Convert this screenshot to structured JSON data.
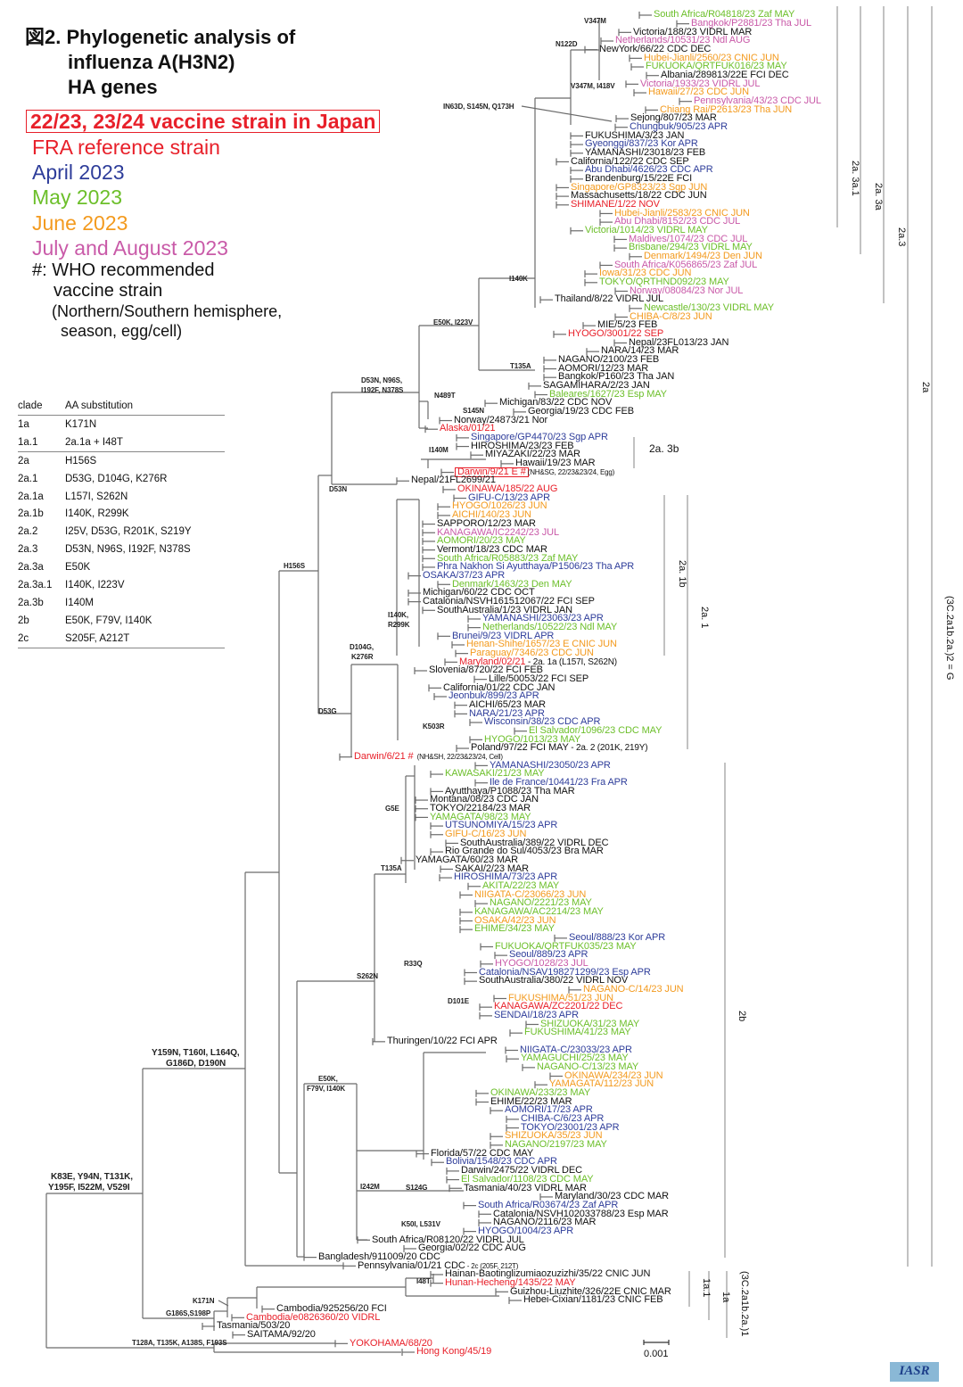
{
  "title": {
    "line1": "図2. Phylogenetic analysis of",
    "line2": "influenza A(H3N2)",
    "line3": "HA genes"
  },
  "legend": {
    "vaccine": "22/23, 23/24 vaccine strain in Japan",
    "fra": "FRA reference strain",
    "april": "April 2023",
    "may": "May 2023",
    "june": "June 2023",
    "julaug": "July and August 2023",
    "who_line1": "#: WHO recommended",
    "who_line2": "vaccine strain",
    "who_line3": "(Northern/Southern hemisphere,",
    "who_line4": "season, egg/cell)"
  },
  "colors": {
    "black": "#111111",
    "red": "#e8202a",
    "blue": "#2e3d9a",
    "green": "#6cbf2a",
    "orange": "#f39a1e",
    "pink": "#c95aa8"
  },
  "table": {
    "headers": [
      "clade",
      "AA substitution"
    ],
    "rows": [
      [
        "1a",
        "K171N"
      ],
      [
        "1a.1",
        "2a.1a + I48T"
      ],
      [
        "2a",
        "H156S"
      ],
      [
        "2a.1",
        "D53G, D104G, K276R"
      ],
      [
        "2a.1a",
        "L157I, S262N"
      ],
      [
        "2a.1b",
        "I140K, R299K"
      ],
      [
        "2a.2",
        "I25V, D53G, R201K, S219Y"
      ],
      [
        "2a.3",
        "D53N, N96S, I192F, N378S"
      ],
      [
        "2a.3a",
        "E50K"
      ],
      [
        "2a.3a.1",
        "I140K, I223V"
      ],
      [
        "2a.3b",
        "I140M"
      ],
      [
        "2b",
        "E50K, F79V, I140K"
      ],
      [
        "2c",
        "S205F, A212T"
      ]
    ]
  },
  "leaves": [
    {
      "t": "South Africa/R04818/23 Zaf MAY",
      "c": "green"
    },
    {
      "t": "Bangkok/P2881/23 Tha JUL",
      "c": "pink"
    },
    {
      "t": "Victoria/188/23 VIDRL MAR",
      "c": "black"
    },
    {
      "t": "Netherlands/10531/23 Ndl AUG",
      "c": "pink"
    },
    {
      "t": "NewYork/66/22 CDC DEC",
      "c": "black"
    },
    {
      "t": "Hubei-Jianli/2560/23 CNIC JUN",
      "c": "orange"
    },
    {
      "t": "FUKUOKA/QRTFUK016/23 MAY",
      "c": "green"
    },
    {
      "t": "Albania/289813/22E FCI DEC",
      "c": "black"
    },
    {
      "t": "Victoria/1933/23 VIDRL JUL",
      "c": "pink"
    },
    {
      "t": "Hawaii/27/23 CDC JUN",
      "c": "orange"
    },
    {
      "t": "Pennsylvania/43/23 CDC JUL",
      "c": "pink"
    },
    {
      "t": "Chiang Rai/P2613/23 Tha JUN",
      "c": "orange"
    },
    {
      "t": "Sejong/807/23 MAR",
      "c": "black"
    },
    {
      "t": "Chungbuk/905/23 APR",
      "c": "blue"
    },
    {
      "t": "FUKUSHIMA/3/23 JAN",
      "c": "black"
    },
    {
      "t": "Gyeonggi/837/23 Kor APR",
      "c": "blue"
    },
    {
      "t": "YAMANASHI/23018/23 FEB",
      "c": "black"
    },
    {
      "t": "California/122/22 CDC SEP",
      "c": "black"
    },
    {
      "t": "Abu Dhabi/4626/23 CDC APR",
      "c": "blue"
    },
    {
      "t": "Brandenburg/15/22E FCI",
      "c": "black"
    },
    {
      "t": "Singapore/GP8323/23 Sgp JUN",
      "c": "orange"
    },
    {
      "t": "Massachusetts/18/22 CDC JUN",
      "c": "black"
    },
    {
      "t": "SHIMANE/1/22 NOV",
      "c": "red"
    },
    {
      "t": "Hubei-Jianli/2583/23 CNIC JUN",
      "c": "orange"
    },
    {
      "t": "Abu Dhabi/8152/23 CDC JUL",
      "c": "pink"
    },
    {
      "t": "Victoria/1014/23 VIDRL MAY",
      "c": "green"
    },
    {
      "t": "Maldives/1074/23 CDC JUL",
      "c": "pink"
    },
    {
      "t": "Brisbane/294/23 VIDRL MAY",
      "c": "green"
    },
    {
      "t": "Denmark/1494/23 Den JUN",
      "c": "orange"
    },
    {
      "t": "South Africa/K056865/23 Zaf JUL",
      "c": "pink"
    },
    {
      "t": "Iowa/31/23 CDC JUN",
      "c": "orange"
    },
    {
      "t": "TOKYO/QRTHND092/23 MAY",
      "c": "green"
    },
    {
      "t": "Norway/08084/23 Nor JUL",
      "c": "pink"
    },
    {
      "t": "Thailand/8/22 VIDRL JUL",
      "c": "black"
    },
    {
      "t": "Newcastle/130/23 VIDRL MAY",
      "c": "green"
    },
    {
      "t": "CHIBA-C/8/23 JUN",
      "c": "orange"
    },
    {
      "t": "MIE/5/23 FEB",
      "c": "black"
    },
    {
      "t": "HYOGO/3001/22 SEP",
      "c": "red"
    },
    {
      "t": "Nepal/23FL013/23 JAN",
      "c": "black"
    },
    {
      "t": "NARA/14/23 MAR",
      "c": "black"
    },
    {
      "t": "NAGANO/2100/23 FEB",
      "c": "black"
    },
    {
      "t": "AOMORI/12/23 MAR",
      "c": "black"
    },
    {
      "t": "Bangkok/P160/23 Tha JAN",
      "c": "black"
    },
    {
      "t": "SAGAMIHARA/2/23 JAN",
      "c": "black"
    },
    {
      "t": "Baleares/1627/23 Esp MAY",
      "c": "green"
    },
    {
      "t": "Michigan/83/22 CDC NOV",
      "c": "black"
    },
    {
      "t": "Georgia/19/23 CDC FEB",
      "c": "black"
    },
    {
      "t": "Norway/24873/21 Nor",
      "c": "black"
    },
    {
      "t": "Alaska/01/21",
      "c": "red"
    },
    {
      "t": "Singapore/GP4470/23 Sgp APR",
      "c": "blue"
    },
    {
      "t": "HIROSHIMA/23/23 FEB",
      "c": "black"
    },
    {
      "t": "MIYAZAKI/22/23 MAR",
      "c": "black"
    },
    {
      "t": "Hawaii/19/23 MAR",
      "c": "black"
    },
    {
      "t": "Darwin/9/21 E  #",
      "c": "red",
      "boxed": true,
      "n": "(NH&SG, 22/23&23/24, Egg)",
      "ns": true
    },
    {
      "t": "Nepal/21FL2699/21",
      "c": "black"
    },
    {
      "t": "OKINAWA/185/22 AUG",
      "c": "red"
    },
    {
      "t": "GIFU-C/13/23 APR",
      "c": "blue"
    },
    {
      "t": "HYOGO/1026/23 JUN",
      "c": "orange"
    },
    {
      "t": "AICHI/140/23 JUN",
      "c": "orange"
    },
    {
      "t": "SAPPORO/12/23 MAR",
      "c": "black"
    },
    {
      "t": "KANAGAWA/IC2242/23 JUL",
      "c": "pink"
    },
    {
      "t": "AOMORI/20/23 MAY",
      "c": "green"
    },
    {
      "t": "Vermont/18/23 CDC MAR",
      "c": "black"
    },
    {
      "t": "South Africa/R05883/23 Zaf MAY",
      "c": "green"
    },
    {
      "t": "Phra Nakhon Si Ayutthaya/P1506/23 Tha APR",
      "c": "blue"
    },
    {
      "t": "OSAKA/37/23 APR",
      "c": "blue"
    },
    {
      "t": "Denmark/1463/23 Den MAY",
      "c": "green"
    },
    {
      "t": "Michigan/60/22 CDC OCT",
      "c": "black"
    },
    {
      "t": "Catalonia/NSVH161512067/22 FCI SEP",
      "c": "black"
    },
    {
      "t": "SouthAustralia/1/23 VIDRL JAN",
      "c": "black"
    },
    {
      "t": "YAMANASHI/23063/23 APR",
      "c": "blue"
    },
    {
      "t": "Netherlands/10522/23 Ndl MAY",
      "c": "green"
    },
    {
      "t": "Brunei/9/23 VIDRL APR",
      "c": "blue"
    },
    {
      "t": "Henan-Shihe/1657/23 E CNIC JUN",
      "c": "orange"
    },
    {
      "t": "Paraguay/7346/23 CDC JUN",
      "c": "orange"
    },
    {
      "t": "Maryland/02/21",
      "c": "red",
      "n": " - 2a. 1a (L157I, S262N)"
    },
    {
      "t": "Slovenia/8720/22 FCI FEB",
      "c": "black"
    },
    {
      "t": "Lille/50053/22 FCI SEP",
      "c": "black"
    },
    {
      "t": "California/01/22 CDC JAN",
      "c": "black"
    },
    {
      "t": "Jeonbuk/899/23 APR",
      "c": "blue"
    },
    {
      "t": "AICHI/65/23 MAR",
      "c": "black"
    },
    {
      "t": "NARA/21/23 APR",
      "c": "blue"
    },
    {
      "t": "Wisconsin/38/23 CDC APR",
      "c": "blue"
    },
    {
      "t": "El Salvador/1096/23 CDC MAY",
      "c": "green"
    },
    {
      "t": "HYOGO/1013/23 MAY",
      "c": "green"
    },
    {
      "t": "Poland/97/22 FCI MAY",
      "c": "black",
      "n": " - 2a. 2 (201K, 219Y)"
    },
    {
      "t": "Darwin/6/21  #",
      "c": "red",
      "n": "  (NH&SH, 22/23&23/24, Cell)",
      "ns": true
    },
    {
      "t": "YAMANASHI/23050/23 APR",
      "c": "blue"
    },
    {
      "t": "KAWASAKI/21/23 MAY",
      "c": "green"
    },
    {
      "t": "Ile de France/10441/23 Fra APR",
      "c": "blue"
    },
    {
      "t": "Ayutthaya/P1088/23 Tha MAR",
      "c": "black"
    },
    {
      "t": "Montana/08/23 CDC JAN",
      "c": "black"
    },
    {
      "t": "TOKYO/22184/23 MAR",
      "c": "black"
    },
    {
      "t": "YAMAGATA/98/23 MAY",
      "c": "green"
    },
    {
      "t": "UTSUNOMIYA/15/23 APR",
      "c": "blue"
    },
    {
      "t": "GIFU-C/16/23 JUN",
      "c": "orange"
    },
    {
      "t": "SouthAustralia/389/22 VIDRL DEC",
      "c": "black"
    },
    {
      "t": "Rio Grande do Sul/4053/23 Bra MAR",
      "c": "black"
    },
    {
      "t": "YAMAGATA/60/23 MAR",
      "c": "black"
    },
    {
      "t": "SAKAI/2/23 MAR",
      "c": "black"
    },
    {
      "t": "HIROSHIMA/73/23 APR",
      "c": "blue"
    },
    {
      "t": "AKITA/22/23 MAY",
      "c": "green"
    },
    {
      "t": "NIIGATA-C/23066/23 JUN",
      "c": "orange"
    },
    {
      "t": "NAGANO/2221/23 MAY",
      "c": "green"
    },
    {
      "t": "KANAGAWA/AC2214/23 MAY",
      "c": "green"
    },
    {
      "t": "OSAKA/42/23 JUN",
      "c": "orange"
    },
    {
      "t": "EHIME/34/23 MAY",
      "c": "green"
    },
    {
      "t": "Seoul/888/23 Kor APR",
      "c": "blue"
    },
    {
      "t": "FUKUOKA/QRTFUK035/23 MAY",
      "c": "green"
    },
    {
      "t": "Seoul/889/23 APR",
      "c": "blue"
    },
    {
      "t": "HYOGO/1028/23 JUL",
      "c": "pink"
    },
    {
      "t": "Catalonia/NSAV198271299/23 Esp APR",
      "c": "blue"
    },
    {
      "t": "SouthAustralia/380/22 VIDRL NOV",
      "c": "black"
    },
    {
      "t": "NAGANO-C/14/23 JUN",
      "c": "orange"
    },
    {
      "t": "FUKUSHIMA/51/23 JUN",
      "c": "orange"
    },
    {
      "t": "KANAGAWA/ZC2201/22 DEC",
      "c": "red"
    },
    {
      "t": "SENDAI/18/23 APR",
      "c": "blue"
    },
    {
      "t": "SHIZUOKA/31/23 MAY",
      "c": "green"
    },
    {
      "t": "FUKUSHIMA/41/23 MAY",
      "c": "green"
    },
    {
      "t": "Thuringen/10/22 FCI APR",
      "c": "black"
    },
    {
      "t": "NIIGATA-C/23033/23 APR",
      "c": "blue"
    },
    {
      "t": "YAMAGUCHI/25/23 MAY",
      "c": "green"
    },
    {
      "t": "NAGANO-C/13/23 MAY",
      "c": "green"
    },
    {
      "t": "OKINAWA/234/23 JUN",
      "c": "orange"
    },
    {
      "t": "YAMAGATA/112/23 JUN",
      "c": "orange"
    },
    {
      "t": "OKINAWA/233/23 MAY",
      "c": "green"
    },
    {
      "t": "EHIME/22/23 MAR",
      "c": "black"
    },
    {
      "t": "AOMORI/17/23 APR",
      "c": "blue"
    },
    {
      "t": "CHIBA-C/6/23 APR",
      "c": "blue"
    },
    {
      "t": "TOKYO/23001/23 APR",
      "c": "blue"
    },
    {
      "t": "SHIZUOKA/35/23 JUN",
      "c": "orange"
    },
    {
      "t": "NAGANO/2197/23 MAY",
      "c": "green"
    },
    {
      "t": "Florida/57/22 CDC MAY",
      "c": "black"
    },
    {
      "t": "Bolivia/1548/23 CDC APR",
      "c": "blue"
    },
    {
      "t": "Darwin/2475/22 VIDRL DEC",
      "c": "black"
    },
    {
      "t": "El Salvador/1108/23 CDC MAY",
      "c": "green"
    },
    {
      "t": "Tasmania/40/23 VIDRL MAR",
      "c": "black"
    },
    {
      "t": "Maryland/30/23 CDC MAR",
      "c": "black"
    },
    {
      "t": "South Africa/R03674/23 Zaf APR",
      "c": "blue"
    },
    {
      "t": "Catalonia/NSVH102033788/23 Esp MAR",
      "c": "black"
    },
    {
      "t": "NAGANO/2116/23 MAR",
      "c": "black"
    },
    {
      "t": "HYOGO/1004/23 APR",
      "c": "blue"
    },
    {
      "t": "South Africa/R08120/22 VIDRL JUL",
      "c": "black"
    },
    {
      "t": "Georgia/02/22 CDC AUG",
      "c": "black"
    },
    {
      "t": "Bangladesh/911009/20 CDC",
      "c": "black"
    },
    {
      "t": "Pennsylvania/01/21 CDC",
      "c": "black",
      "n": " - 2c (205F, 212T)",
      "ns": true
    },
    {
      "t": "Hainan-Baotinglizumiaozuzizhi/35/22 CNIC JUN",
      "c": "black"
    },
    {
      "t": "Hunan-Hecheng/1435/22 MAY",
      "c": "red"
    },
    {
      "t": "Guizhou-Liuzhite/326/22E CNIC MAR",
      "c": "black"
    },
    {
      "t": "Hebei-Cixian/1181/23 CNIC FEB",
      "c": "black"
    },
    {
      "t": "Cambodia/925256/20 FCI",
      "c": "black"
    },
    {
      "t": "Cambodia/e0826360/20 VIDRL",
      "c": "red"
    },
    {
      "t": "Tasmania/503/20",
      "c": "black"
    },
    {
      "t": "SAITAMA/92/20",
      "c": "black"
    },
    {
      "t": "YOKOHAMA/68/20",
      "c": "red"
    },
    {
      "t": "Hong Kong/45/19",
      "c": "red"
    }
  ],
  "branch_labels": [
    "V347M",
    "N122D",
    "V347M, I418V",
    "IN63D, S145N, Q173H",
    "I140K",
    "E50K, I223V",
    "T135A",
    "D53N, N96S,",
    "I192F, N378S",
    "N489T",
    "S145N",
    "I140M",
    "D53N",
    "H156S",
    "I140K,",
    "R299K",
    "D104G,",
    "K276R",
    "D53G",
    "K503R",
    "G5E",
    "T135A",
    "R33Q",
    "S262N",
    "D101E",
    "Y159N, T160I, L164Q,",
    "G186D, D190N",
    "E50K,",
    "F79V, I140K",
    "I242M",
    "S124G",
    "K50I, L531V",
    "K83E, Y94N, T131K,",
    "Y195F, I522M, V529I",
    "I48T",
    "K171N",
    "G186S,S198P",
    "T128A, T135K, A138S, F193S"
  ],
  "clades": [
    "2a. 3a.1",
    "2a. 3a",
    "2a.3",
    "2a",
    "(3C.2a1b.2a.)2 = G",
    "2a. 3b",
    "2a. 1b",
    "2a. 1",
    "2b",
    "1a.1",
    "1a",
    "(3C.2a1b.2a.)1"
  ],
  "scale_bar": "0.001",
  "logo": "IASR"
}
